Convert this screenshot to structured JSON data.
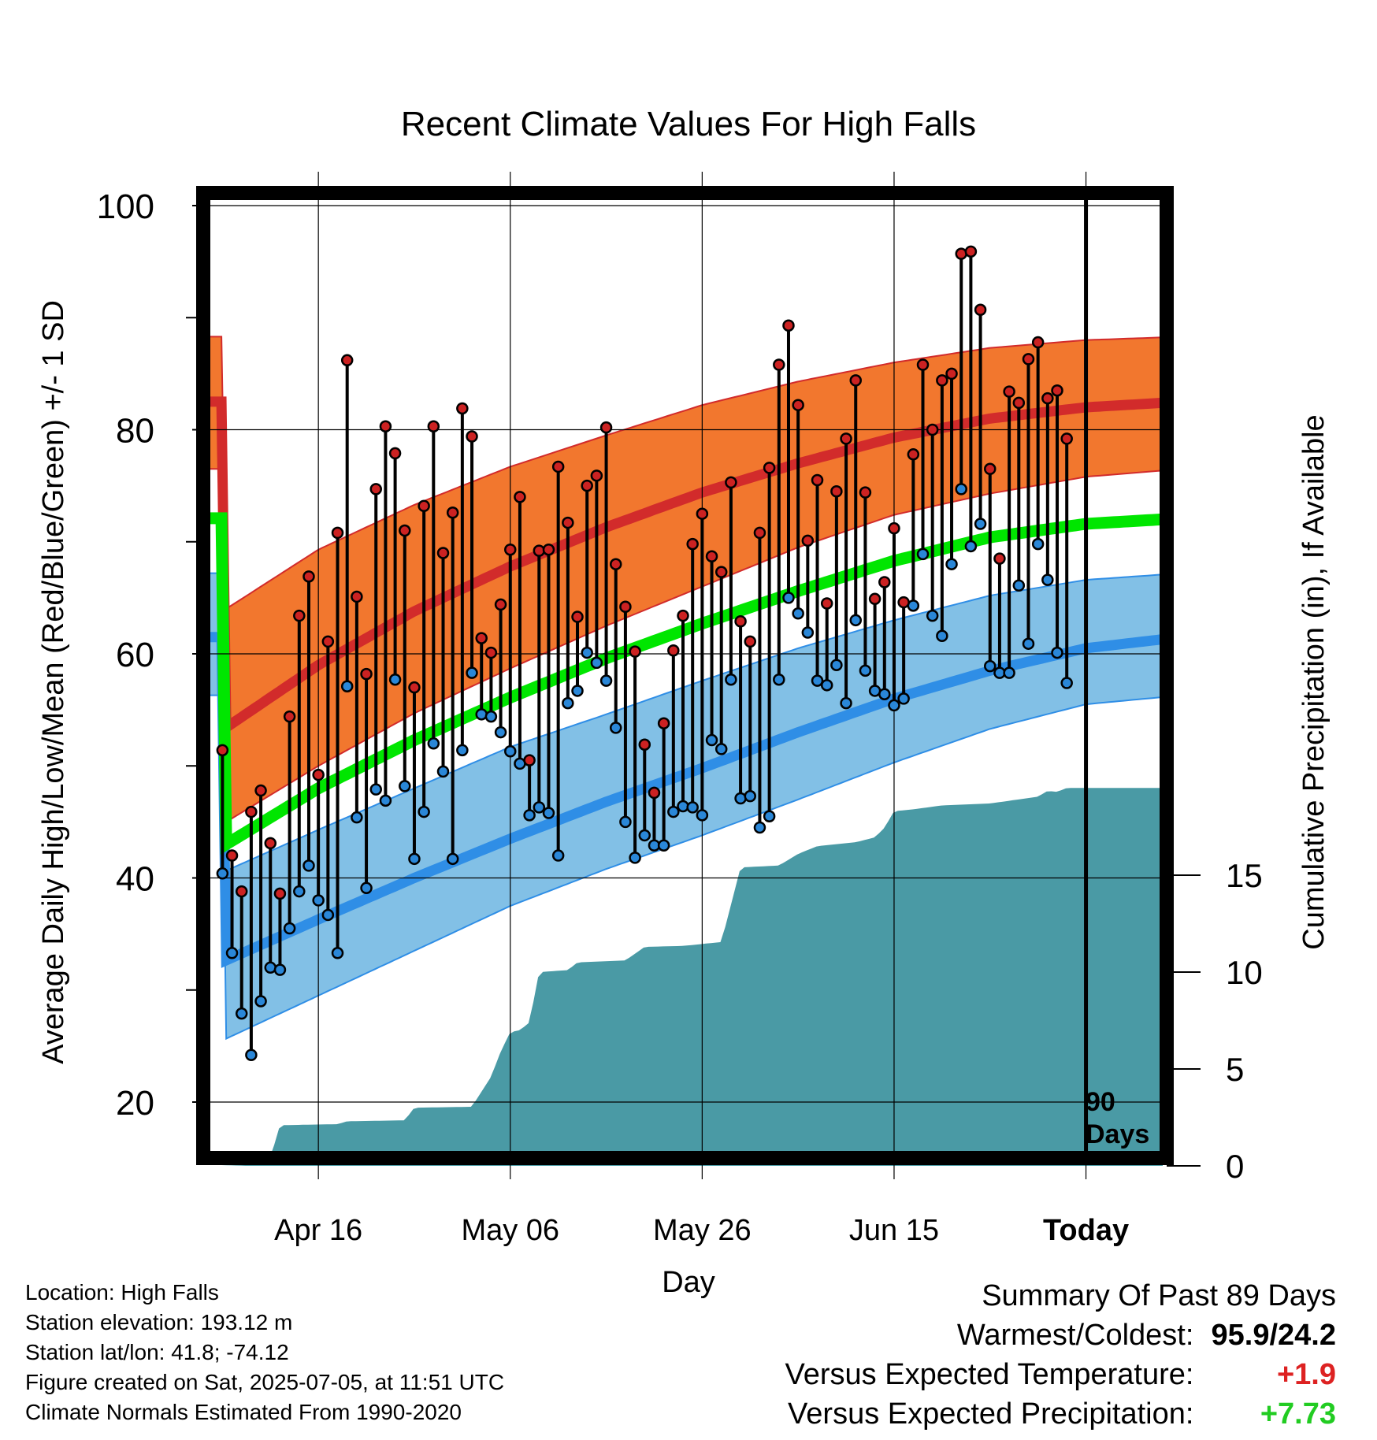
{
  "chart_data": {
    "type": "line",
    "title": "Recent Climate Values For High Falls",
    "xlabel": "Day",
    "ylabel": "Average Daily High/Low/Mean (Red/Blue/Green) +/- 1 SD",
    "y2label": "Cumulative Precipitation (in), If Available",
    "ylim": [
      14,
      101
    ],
    "y2lim": [
      0,
      21
    ],
    "yticks": [
      20,
      40,
      60,
      80,
      100
    ],
    "y2ticks": [
      0,
      5,
      10,
      15
    ],
    "x_tick_labels": [
      {
        "day": 10,
        "label": "Apr 16"
      },
      {
        "day": 30,
        "label": "May 06"
      },
      {
        "day": 50,
        "label": "May 26"
      },
      {
        "day": 70,
        "label": "Jun 15"
      },
      {
        "day": 90,
        "label": "Today"
      }
    ],
    "today_marker": {
      "day": 90,
      "label_line1": "90",
      "label_line2": "Days"
    },
    "normals": {
      "high_mean": [
        [
          0,
          53.2
        ],
        [
          10,
          59.0
        ],
        [
          20,
          63.8
        ],
        [
          30,
          67.8
        ],
        [
          40,
          71.3
        ],
        [
          50,
          74.4
        ],
        [
          60,
          77.0
        ],
        [
          70,
          79.3
        ],
        [
          80,
          81.0
        ],
        [
          90,
          82.0
        ],
        [
          100,
          82.5
        ]
      ],
      "high_upper": [
        [
          0,
          63.8
        ],
        [
          10,
          69.3
        ],
        [
          20,
          73.3
        ],
        [
          30,
          76.7
        ],
        [
          40,
          79.5
        ],
        [
          50,
          82.2
        ],
        [
          60,
          84.3
        ],
        [
          70,
          86.0
        ],
        [
          80,
          87.3
        ],
        [
          90,
          88.0
        ],
        [
          100,
          88.3
        ]
      ],
      "high_lower": [
        [
          0,
          44.8
        ],
        [
          10,
          50.0
        ],
        [
          20,
          54.7
        ],
        [
          30,
          58.7
        ],
        [
          40,
          62.5
        ],
        [
          50,
          66.0
        ],
        [
          60,
          69.5
        ],
        [
          70,
          72.4
        ],
        [
          80,
          74.3
        ],
        [
          90,
          75.8
        ],
        [
          100,
          76.5
        ]
      ],
      "mean": [
        [
          0,
          42.8
        ],
        [
          10,
          48.0
        ],
        [
          20,
          52.3
        ],
        [
          30,
          56.1
        ],
        [
          40,
          59.6
        ],
        [
          50,
          62.7
        ],
        [
          60,
          65.6
        ],
        [
          70,
          68.3
        ],
        [
          80,
          70.4
        ],
        [
          90,
          71.6
        ],
        [
          100,
          72.1
        ]
      ],
      "low_mean": [
        [
          0,
          32.5
        ],
        [
          10,
          36.3
        ],
        [
          20,
          40.0
        ],
        [
          30,
          43.5
        ],
        [
          40,
          46.8
        ],
        [
          50,
          49.8
        ],
        [
          60,
          53.0
        ],
        [
          70,
          56.0
        ],
        [
          80,
          58.5
        ],
        [
          90,
          60.5
        ],
        [
          100,
          61.5
        ]
      ],
      "low_upper": [
        [
          0,
          40.5
        ],
        [
          10,
          44.3
        ],
        [
          20,
          48.0
        ],
        [
          30,
          51.7
        ],
        [
          40,
          54.6
        ],
        [
          50,
          57.6
        ],
        [
          60,
          60.5
        ],
        [
          70,
          63.0
        ],
        [
          80,
          65.2
        ],
        [
          90,
          66.6
        ],
        [
          100,
          67.2
        ]
      ],
      "low_lower": [
        [
          0,
          25.5
        ],
        [
          10,
          29.5
        ],
        [
          20,
          33.5
        ],
        [
          30,
          37.5
        ],
        [
          40,
          40.8
        ],
        [
          50,
          43.8
        ],
        [
          60,
          47.0
        ],
        [
          70,
          50.3
        ],
        [
          80,
          53.3
        ],
        [
          90,
          55.5
        ],
        [
          100,
          56.3
        ]
      ]
    },
    "daily_high": [
      51.4,
      42.0,
      38.8,
      45.9,
      47.8,
      43.1,
      38.6,
      54.4,
      63.4,
      66.9,
      49.2,
      61.1,
      70.8,
      86.2,
      65.1,
      58.2,
      74.7,
      80.3,
      77.9,
      71.0,
      57.0,
      73.2,
      80.3,
      69.0,
      72.6,
      81.9,
      79.4,
      61.4,
      60.1,
      64.4,
      69.3,
      74.0,
      50.5,
      69.2,
      69.3,
      76.7,
      71.7,
      63.3,
      75.0,
      75.9,
      80.2,
      68.0,
      64.2,
      60.2,
      51.9,
      47.6,
      53.8,
      60.3,
      63.4,
      69.8,
      72.5,
      68.7,
      67.3,
      75.3,
      62.9,
      61.1,
      70.8,
      76.6,
      85.8,
      89.3,
      82.2,
      70.1,
      75.5,
      64.5,
      74.5,
      79.2,
      84.4,
      74.4,
      64.9,
      66.4,
      71.2,
      64.6,
      77.8,
      85.8,
      80.0,
      84.4,
      85.0,
      95.7,
      95.9,
      90.7,
      76.5,
      68.5,
      83.4,
      82.4,
      86.3,
      87.8,
      82.8,
      83.5,
      79.2
    ],
    "daily_low": [
      40.4,
      33.3,
      27.9,
      24.2,
      29.0,
      32.0,
      31.8,
      35.5,
      38.8,
      41.1,
      38.0,
      36.7,
      33.3,
      57.1,
      45.4,
      39.1,
      47.9,
      46.9,
      57.7,
      48.2,
      41.7,
      45.9,
      52.0,
      49.5,
      41.7,
      51.4,
      58.3,
      54.6,
      54.4,
      53.0,
      51.3,
      50.2,
      45.6,
      46.3,
      45.8,
      42.0,
      55.6,
      56.7,
      60.1,
      59.2,
      57.6,
      53.4,
      45.0,
      41.8,
      43.8,
      42.9,
      42.9,
      45.9,
      46.4,
      46.3,
      45.6,
      52.3,
      51.5,
      57.7,
      47.1,
      47.3,
      44.5,
      45.5,
      57.7,
      65.0,
      63.6,
      61.9,
      57.6,
      57.2,
      59.0,
      55.6,
      63.0,
      58.5,
      56.7,
      56.4,
      55.4,
      56.0,
      64.3,
      68.9,
      63.4,
      61.6,
      68.0,
      74.7,
      69.6,
      71.6,
      58.9,
      58.3,
      58.3,
      66.1,
      60.9,
      69.8,
      66.6,
      60.1,
      57.4
    ],
    "cumulative_precip": [
      [
        0,
        0.0
      ],
      [
        3,
        0.05
      ],
      [
        5,
        0.4
      ],
      [
        6,
        2.1
      ],
      [
        12,
        2.15
      ],
      [
        13,
        2.3
      ],
      [
        19,
        2.35
      ],
      [
        20,
        3.0
      ],
      [
        26,
        3.05
      ],
      [
        28,
        4.6
      ],
      [
        29,
        5.9
      ],
      [
        30,
        6.9
      ],
      [
        31,
        7.0
      ],
      [
        32,
        7.4
      ],
      [
        33,
        10.0
      ],
      [
        36,
        10.1
      ],
      [
        37,
        10.5
      ],
      [
        42,
        10.6
      ],
      [
        44,
        11.3
      ],
      [
        48,
        11.35
      ],
      [
        52,
        11.55
      ],
      [
        54,
        15.4
      ],
      [
        58,
        15.5
      ],
      [
        60,
        16.1
      ],
      [
        62,
        16.5
      ],
      [
        66,
        16.7
      ],
      [
        68,
        16.95
      ],
      [
        69,
        17.45
      ],
      [
        70,
        18.3
      ],
      [
        72,
        18.4
      ],
      [
        75,
        18.6
      ],
      [
        80,
        18.7
      ],
      [
        85,
        19.05
      ],
      [
        86,
        19.35
      ],
      [
        87,
        19.3
      ],
      [
        88,
        19.5
      ],
      [
        100,
        19.5
      ]
    ]
  },
  "info": {
    "location": "Location: High Falls",
    "elevation": "Station elevation: 193.12 m",
    "latlon": "Station lat/lon: 41.8; -74.12",
    "created": "Figure created on Sat, 2025-07-05, at 11:51 UTC",
    "normals": "Climate Normals Estimated From 1990-2020"
  },
  "summary": {
    "title": "Summary Of Past 89 Days",
    "warm_cold_label": "Warmest/Coldest:",
    "warm_cold_value": "95.9/24.2",
    "temp_label": "Versus Expected Temperature:",
    "temp_value": "+1.9",
    "precip_label": "Versus Expected Precipitation:",
    "precip_value": "+7.73"
  },
  "colors": {
    "high_band": "#f2772e",
    "high_line": "#d22b2b",
    "low_band": "#82c0e6",
    "low_line": "#2f8ee6",
    "low_edge": "#2f8ee6",
    "mean_line": "#00e600",
    "precip_fill": "#4a9aa5",
    "high_dot": "#cc2222",
    "low_dot": "#2a87d8",
    "positive_temp": "#dd2222",
    "positive_precip": "#22cc22"
  }
}
